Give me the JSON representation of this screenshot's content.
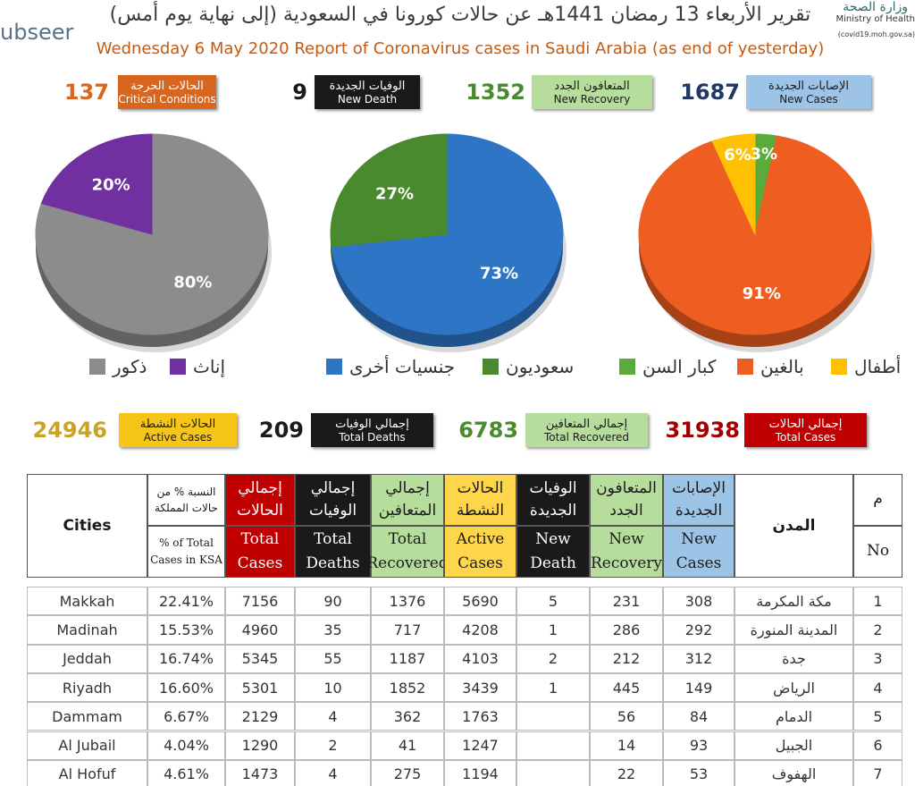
{
  "header": {
    "title_ar": "تقرير الأربعاء 13 رمضان 1441هـ عن حالات كورونا في السعودية (إلى نهاية يوم أمس)",
    "title_en": "Wednesday 6 May 2020 Report of Coronavirus cases in Saudi Arabia (as end of yesterday)",
    "logo_left": "ubseer",
    "logo_right_ar": "وزارة الصحة",
    "logo_right_en": "Ministry of Health",
    "logo_right_url": "(covid19.moh.gov.sa)"
  },
  "daily": [
    {
      "value": 137,
      "ar": "الحالات الحرجة",
      "en": "Critical Conditions",
      "color": "#d9661f",
      "text": "#ffffff",
      "num": "#d9661f"
    },
    {
      "value": 9,
      "ar": "الوفيات الجديدة",
      "en": "New Death",
      "color": "#1a1a1a",
      "text": "#ffffff",
      "num": "#1a1a1a"
    },
    {
      "value": 1352,
      "ar": "المتعافون الجدد",
      "en": "New Recovery",
      "color": "#b6dd9c",
      "text": "#1a1a1a",
      "num": "#4a8a2e"
    },
    {
      "value": 1687,
      "ar": "الإصابات الجديدة",
      "en": "New Cases",
      "color": "#9dc3e6",
      "text": "#1a1a1a",
      "num": "#1f3864"
    }
  ],
  "pies": [
    {
      "type": "pie",
      "names": [
        "ذكور",
        "إناث"
      ],
      "values": [
        80,
        20
      ],
      "value_labels": [
        "80%",
        "20%"
      ],
      "colors": [
        "#8c8c8c",
        "#7030a0"
      ]
    },
    {
      "type": "pie",
      "names": [
        "جنسيات أخرى",
        "سعوديون"
      ],
      "values": [
        73,
        27
      ],
      "value_labels": [
        "73%",
        "27%"
      ],
      "colors": [
        "#2e75c6",
        "#4a8a2e"
      ]
    },
    {
      "type": "pie",
      "names": [
        "كبار السن",
        "بالغين",
        "أطفال"
      ],
      "values": [
        3,
        91,
        6
      ],
      "value_labels": [
        "3%",
        "91%",
        "6%"
      ],
      "colors": [
        "#5aaa3c",
        "#ed5e20",
        "#ffc000"
      ]
    }
  ],
  "totals": [
    {
      "value": 24946,
      "ar": "الحالات النشطة",
      "en": "Active Cases",
      "color": "#f5c518",
      "text": "#1a1a1a",
      "num": "#c9a227"
    },
    {
      "value": 209,
      "ar": "إجمالي الوفيات",
      "en": "Total Deaths",
      "color": "#1a1a1a",
      "text": "#ffffff",
      "num": "#1a1a1a"
    },
    {
      "value": 6783,
      "ar": "إجمالي المتعافين",
      "en": "Total Recovered",
      "color": "#b6dd9c",
      "text": "#1a1a1a",
      "num": "#4a8a2e"
    },
    {
      "value": 31938,
      "ar": "إجمالي الحالات",
      "en": "Total Cases",
      "color": "#c00000",
      "text": "#ffffff",
      "num": "#a00000"
    }
  ],
  "table": {
    "columns": [
      {
        "en": "Cities"
      },
      {
        "ar": "النسبة % من حالات المملكة",
        "en": "% of Total Cases in KSA"
      },
      {
        "ar": "إجمالي الحالات",
        "en": "Total Cases"
      },
      {
        "ar": "إجمالي الوفيات",
        "en": "Total Deaths"
      },
      {
        "ar": "إجمالي المتعافين",
        "en": "Total Recovered"
      },
      {
        "ar": "الحالات النشطة",
        "en": "Active Cases"
      },
      {
        "ar": "الوفيات الجديدة",
        "en": "New Death"
      },
      {
        "ar": "المتعافون الجدد",
        "en": "New Recovery"
      },
      {
        "ar": "الإصابات الجديدة",
        "en": "New Cases"
      },
      {
        "ar": "المدن"
      },
      {
        "ar": "م",
        "en": "No"
      }
    ],
    "rows": [
      [
        "Makkah",
        "22.41%",
        7156,
        90,
        1376,
        5690,
        5,
        231,
        308,
        "مكة المكرمة",
        1
      ],
      [
        "Madinah",
        "15.53%",
        4960,
        35,
        717,
        4208,
        1,
        286,
        292,
        "المدينة المنورة",
        2
      ],
      [
        "Jeddah",
        "16.74%",
        5345,
        55,
        1187,
        4103,
        2,
        212,
        312,
        "جدة",
        3
      ],
      [
        "Riyadh",
        "16.60%",
        5301,
        10,
        1852,
        3439,
        1,
        445,
        149,
        "الرياض",
        4
      ],
      [
        "Dammam",
        "6.67%",
        2129,
        4,
        362,
        1763,
        null,
        56,
        84,
        "الدمام",
        5
      ],
      [
        "Al Jubail",
        "4.04%",
        1290,
        2,
        41,
        1247,
        null,
        14,
        93,
        "الجبيل",
        6
      ],
      [
        "Al Hofuf",
        "4.61%",
        1473,
        4,
        275,
        1194,
        null,
        22,
        53,
        "الهفوف",
        7
      ]
    ]
  }
}
